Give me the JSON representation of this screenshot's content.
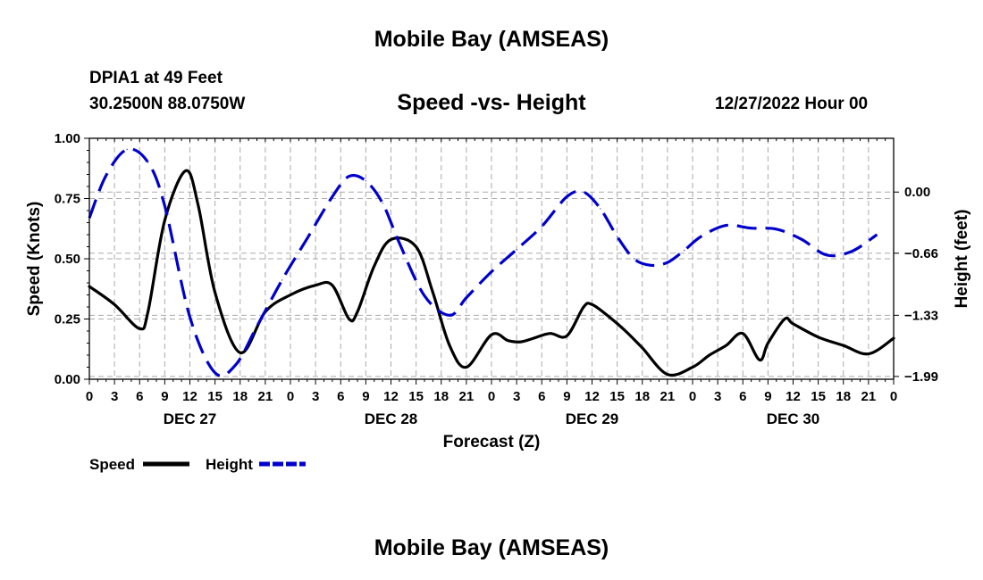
{
  "header": {
    "title": "Mobile Bay (AMSEAS)",
    "station": "DPIA1 at 49 Feet",
    "coords": "30.2500N  88.0750W",
    "subtitle": "Speed -vs- Height",
    "datetime": "12/27/2022 Hour 00"
  },
  "footer": {
    "title": "Mobile Bay (AMSEAS)"
  },
  "chart_data": {
    "type": "line",
    "title": "Speed -vs- Height",
    "xlabel": "Forecast (Z)",
    "ylabel": "Speed (Knots)",
    "y2label": "Height (feet)",
    "xlim": [
      0,
      96
    ],
    "ylim": [
      0,
      1
    ],
    "y2lim": [
      -2.02,
      0.58
    ],
    "x_ticks": [
      0,
      3,
      6,
      9,
      12,
      15,
      18,
      21,
      24,
      27,
      30,
      33,
      36,
      39,
      42,
      45,
      48,
      51,
      54,
      57,
      60,
      63,
      66,
      69,
      72,
      75,
      78,
      81,
      84,
      87,
      90,
      93,
      96
    ],
    "x_tick_labels": [
      "0",
      "3",
      "6",
      "9",
      "12",
      "15",
      "18",
      "21",
      "0",
      "3",
      "6",
      "9",
      "12",
      "15",
      "18",
      "21",
      "0",
      "3",
      "6",
      "9",
      "12",
      "15",
      "18",
      "21",
      "0",
      "3",
      "6",
      "9",
      "12",
      "15",
      "18",
      "21",
      "0"
    ],
    "day_labels": [
      {
        "x": 12,
        "label": "DEC 27"
      },
      {
        "x": 36,
        "label": "DEC 28"
      },
      {
        "x": 60,
        "label": "DEC 29"
      },
      {
        "x": 84,
        "label": "DEC 30"
      }
    ],
    "y_ticks": [
      0,
      0.25,
      0.5,
      0.75,
      1.0
    ],
    "y_tick_labels": [
      "0.00",
      "0.25",
      "0.50",
      "0.75",
      "1.00"
    ],
    "y2_ticks": [
      -1.99,
      -1.33,
      -0.66,
      0.0
    ],
    "y2_tick_labels": [
      "−1.99",
      "−1.33",
      "−0.66",
      "0.00"
    ],
    "grid": true,
    "legend_position": "bottom-left",
    "series": [
      {
        "name": "Speed",
        "axis": "left",
        "color": "#000000",
        "dash": "solid",
        "x": [
          0,
          3,
          6,
          7,
          9,
          11.5,
          13,
          15,
          18,
          21,
          24,
          27,
          29,
          31,
          32,
          34,
          36,
          39,
          41,
          43,
          45,
          48,
          50,
          51.5,
          53,
          55,
          57,
          59,
          60,
          62,
          64,
          66,
          69,
          72,
          74,
          76,
          78,
          80,
          81,
          83,
          84,
          87,
          90,
          93,
          96
        ],
        "y": [
          0.385,
          0.31,
          0.21,
          0.28,
          0.66,
          0.865,
          0.72,
          0.36,
          0.11,
          0.28,
          0.35,
          0.39,
          0.39,
          0.25,
          0.28,
          0.47,
          0.58,
          0.55,
          0.36,
          0.14,
          0.05,
          0.185,
          0.16,
          0.155,
          0.17,
          0.19,
          0.18,
          0.3,
          0.31,
          0.26,
          0.2,
          0.13,
          0.02,
          0.05,
          0.1,
          0.14,
          0.19,
          0.08,
          0.15,
          0.25,
          0.23,
          0.175,
          0.14,
          0.105,
          0.17
        ]
      },
      {
        "name": "Height",
        "axis": "right",
        "color": "#0000cc",
        "dash": "dashed",
        "x": [
          0,
          2,
          4.5,
          7,
          9,
          12,
          15,
          17.5,
          20,
          23,
          26,
          29,
          31,
          33,
          35,
          37,
          40,
          43,
          45,
          48,
          51,
          54,
          57,
          59,
          61,
          63,
          65,
          67,
          69,
          71,
          73,
          76,
          79,
          82,
          85,
          88,
          91,
          94
        ],
        "y": [
          -0.28,
          0.18,
          0.46,
          0.32,
          -0.15,
          -1.35,
          -1.95,
          -1.86,
          -1.45,
          -0.95,
          -0.5,
          -0.05,
          0.17,
          0.12,
          -0.12,
          -0.55,
          -1.12,
          -1.33,
          -1.14,
          -0.86,
          -0.62,
          -0.37,
          -0.05,
          0.0,
          -0.18,
          -0.48,
          -0.72,
          -0.79,
          -0.76,
          -0.63,
          -0.48,
          -0.36,
          -0.39,
          -0.4,
          -0.51,
          -0.68,
          -0.64,
          -0.46
        ]
      }
    ]
  },
  "legend": [
    {
      "label": "Speed",
      "color": "#000000",
      "dash": "solid"
    },
    {
      "label": "Height",
      "color": "#0000cc",
      "dash": "dashed"
    }
  ]
}
